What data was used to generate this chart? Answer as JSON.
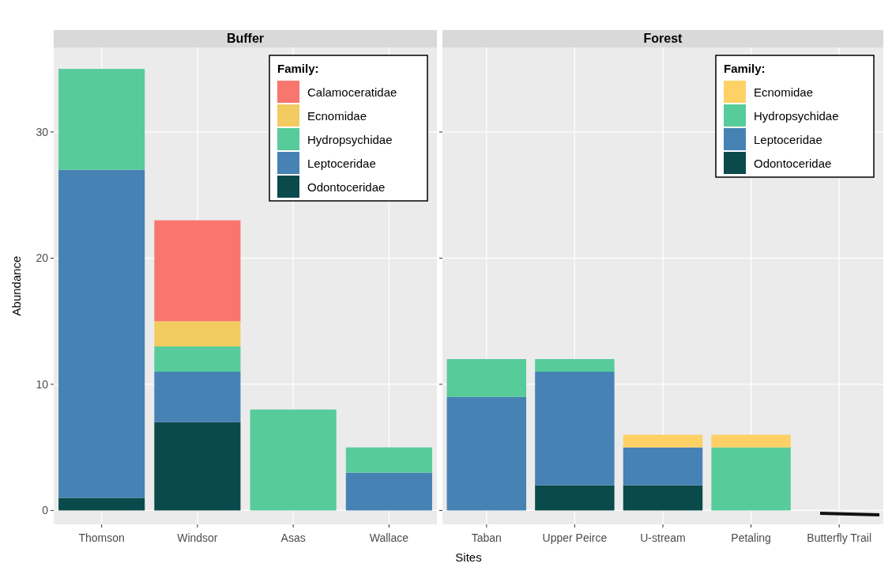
{
  "chart_data": [
    {
      "type": "bar",
      "title": "Buffer",
      "xlabel": "Sites",
      "ylabel": "Abundance",
      "categories": [
        "Thomson",
        "Windsor",
        "Asas",
        "Wallace"
      ],
      "stacked": true,
      "ylim": [
        -1.1,
        36.7
      ],
      "yticks": [
        0,
        10,
        20,
        30
      ],
      "grid": true,
      "legend": "top right",
      "legend_title": "Family:",
      "series": [
        {
          "name": "Odontoceridae",
          "color": "#0a4a4b",
          "values": [
            1,
            7,
            null,
            null
          ]
        },
        {
          "name": "Leptoceridae",
          "color": "#4682b4",
          "values": [
            26,
            4,
            null,
            3
          ]
        },
        {
          "name": "Hydropsychidae",
          "color": "#57cb9a",
          "values": [
            8,
            2,
            8,
            2
          ]
        },
        {
          "name": "Ecnomidae",
          "color": "#f2cb61",
          "values": [
            null,
            2,
            null,
            null
          ]
        },
        {
          "name": "Calamoceratidae",
          "color": "#f8766d",
          "values": [
            null,
            8,
            null,
            null
          ]
        }
      ]
    },
    {
      "type": "bar",
      "title": "Forest",
      "categories": [
        "Taban",
        "Upper Peirce",
        "U-stream",
        "Petaling",
        "Butterfly Trail"
      ],
      "stacked": true,
      "ylim": [
        -1.1,
        36.7
      ],
      "yticks": [
        0,
        10,
        20,
        30
      ],
      "tick_labels": "x",
      "grid": true,
      "legend": "top right",
      "legend_title": "Family:",
      "series": [
        {
          "name": "Odontoceridae",
          "color": "#0a4a4b",
          "values": [
            null,
            2,
            2,
            null,
            null
          ]
        },
        {
          "name": "Leptoceridae",
          "color": "#4682b4",
          "values": [
            9,
            9,
            3,
            null,
            null
          ]
        },
        {
          "name": "Hydropsychidae",
          "color": "#57cb9a",
          "values": [
            3,
            1,
            null,
            5,
            null
          ]
        },
        {
          "name": "Ecnomidae",
          "color": "#fdd166",
          "values": [
            null,
            null,
            1,
            1,
            null
          ]
        }
      ]
    }
  ]
}
